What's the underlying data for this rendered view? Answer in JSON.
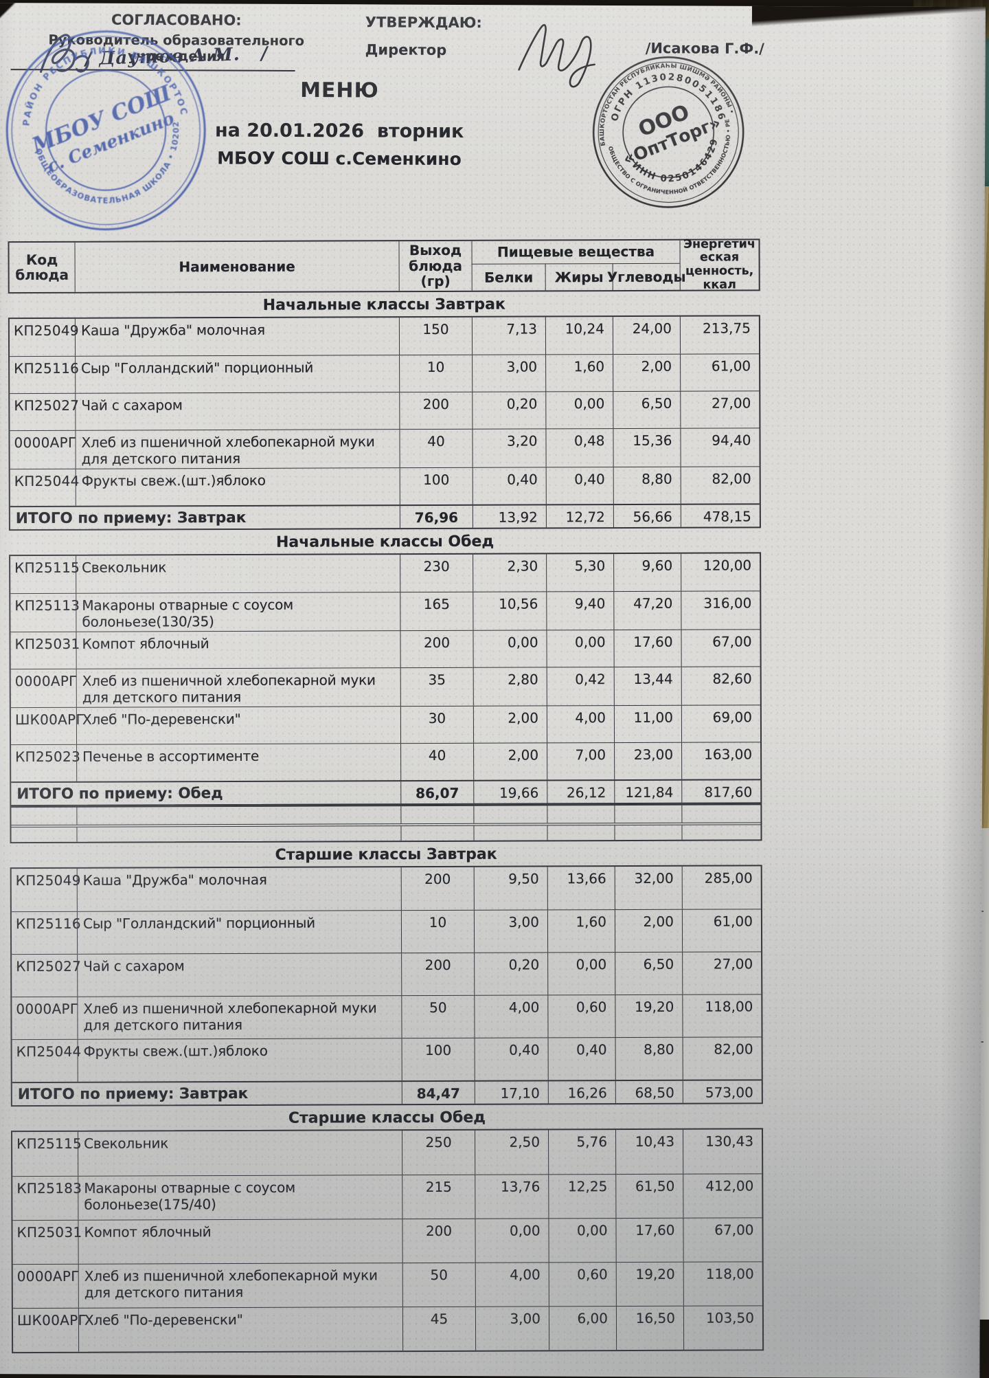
{
  "header": {
    "agreed": {
      "title": "СОГЛАСОВАНО:",
      "subtitle": "Руководитель образовательного учреждения",
      "signature_display": "/ Даутов А.М.   /"
    },
    "approved": {
      "title": "УТВЕРЖДАЮ:",
      "subtitle": "Директор",
      "name": "/Исакова Г.Ф./"
    }
  },
  "title": {
    "menu": "МЕНЮ",
    "date_line": "на 20.01.2026  вторник",
    "school_line": "МБОУ СОШ с.Семенкино"
  },
  "stamps": {
    "school": {
      "color": "#3d56a8",
      "center_line1": "МБОУ СОШ",
      "center_line2": "с. Семенкино",
      "rim_top": "РАЙОН РЕСПУБЛИКИ БАШКОРТОСТАН",
      "rim_bottom": "ОБЩЕОБРАЗОВАТЕЛЬНАЯ ШКОЛА • 1020201255953"
    },
    "vendor": {
      "color": "#26262b",
      "center_line1": "ООО",
      "center_line2": "«ОптТорг»",
      "rim_top_small": "БАШКОРТОСТАН РЕСПУБЛИКАҺЫ ШИШМӘ РАЙОНЫ • ЯУАПЛЫҒЫ СИКЛӘНГӘН ЙӘМҒИӘТ",
      "ogrn": "ОГРН 1130280051186",
      "inn": "ИНН 0250146429",
      "rim_bottom_small": "ОБЩЕСТВО С ОГРАНИЧЕННОЙ ОТВЕТСТВЕННОСТЬЮ • РЕСПУБЛИКА БАШКОРТОСТАН ЧИШМИНСКИЙ РАЙОН"
    }
  },
  "table": {
    "headers": {
      "code": "Код блюда",
      "name": "Наименование",
      "output": "Выход блюда (гр)",
      "nutrients_group": "Пищевые вещества",
      "protein": "Белки",
      "fat": "Жиры",
      "carbs": "Углеводы",
      "energy": "Энергетическая ценность, ккал"
    },
    "sections": [
      {
        "title": "Начальные классы Завтрак",
        "rows": [
          [
            "КП25049",
            "Каша \"Дружба\" молочная",
            "150",
            "7,13",
            "10,24",
            "24,00",
            "213,75"
          ],
          [
            "КП25116",
            "Сыр \"Голландский\" порционный",
            "10",
            "3,00",
            "1,60",
            "2,00",
            "61,00"
          ],
          [
            "КП25027",
            "Чай с сахаром",
            "200",
            "0,20",
            "0,00",
            "6,50",
            "27,00"
          ],
          [
            "0000АРГ",
            "Хлеб из пшеничной хлебопекарной муки для детского питания",
            "40",
            "3,20",
            "0,48",
            "15,36",
            "94,40"
          ],
          [
            "КП25044",
            "Фрукты свеж.(шт.)яблоко",
            "100",
            "0,40",
            "0,40",
            "8,80",
            "82,00"
          ]
        ],
        "total": [
          "ИТОГО по приему: Завтрак",
          "76,96",
          "13,92",
          "12,72",
          "56,66",
          "478,15"
        ],
        "spacer_rows": 0
      },
      {
        "title": "Начальные классы Обед",
        "rows": [
          [
            "КП25115",
            "Свекольник",
            "230",
            "2,30",
            "5,30",
            "9,60",
            "120,00"
          ],
          [
            "КП25113",
            "Макароны отварные с соусом болоньезе(130/35)",
            "165",
            "10,56",
            "9,40",
            "47,20",
            "316,00"
          ],
          [
            "КП25031",
            "Компот яблочный",
            "200",
            "0,00",
            "0,00",
            "17,60",
            "67,00"
          ],
          [
            "0000АРГ",
            "Хлеб из пшеничной хлебопекарной муки для детского питания",
            "35",
            "2,80",
            "0,42",
            "13,44",
            "82,60"
          ],
          [
            "ШК00АРГ",
            "Хлеб \"По-деревенски\"",
            "30",
            "2,00",
            "4,00",
            "11,00",
            "69,00"
          ],
          [
            "КП25023",
            "Печенье в ассортименте",
            "40",
            "2,00",
            "7,00",
            "23,00",
            "163,00"
          ]
        ],
        "total": [
          "ИТОГО по приему: Обед",
          "86,07",
          "19,66",
          "26,12",
          "121,84",
          "817,60"
        ],
        "spacer_rows": 2
      },
      {
        "title": "Старшие классы Завтрак",
        "rows": [
          [
            "КП25049",
            "Каша \"Дружба\" молочная",
            "200",
            "9,50",
            "13,66",
            "32,00",
            "285,00"
          ],
          [
            "КП25116",
            "Сыр \"Голландский\" порционный",
            "10",
            "3,00",
            "1,60",
            "2,00",
            "61,00"
          ],
          [
            "КП25027",
            "Чай с сахаром",
            "200",
            "0,20",
            "0,00",
            "6,50",
            "27,00"
          ],
          [
            "0000АРГ",
            "Хлеб из пшеничной хлебопекарной муки для детского питания",
            "50",
            "4,00",
            "0,60",
            "19,20",
            "118,00"
          ],
          [
            "КП25044",
            "Фрукты свеж.(шт.)яблоко",
            "100",
            "0,40",
            "0,40",
            "8,80",
            "82,00"
          ]
        ],
        "total": [
          "ИТОГО по приему: Завтрак",
          "84,47",
          "17,10",
          "16,26",
          "68,50",
          "573,00"
        ],
        "spacer_rows": 0
      },
      {
        "title": "Старшие классы Обед",
        "rows": [
          [
            "КП25115",
            "Свекольник",
            "250",
            "2,50",
            "5,76",
            "10,43",
            "130,43"
          ],
          [
            "КП25183",
            "Макароны отварные с соусом болоньезе(175/40)",
            "215",
            "13,76",
            "12,25",
            "61,50",
            "412,00"
          ],
          [
            "КП25031",
            "Компот яблочный",
            "200",
            "0,00",
            "0,00",
            "17,60",
            "67,00"
          ],
          [
            "0000АРГ",
            "Хлеб из пшеничной хлебопекарной муки для детского питания",
            "50",
            "4,00",
            "0,60",
            "19,20",
            "118,00"
          ],
          [
            "ШК00АРГ",
            "Хлеб \"По-деревенски\"",
            "45",
            "3,00",
            "6,00",
            "16,50",
            "103,50"
          ]
        ],
        "total": null,
        "spacer_rows": 0
      }
    ]
  },
  "edge_fragments": [
    ")",
    "5",
    "3",
    "0"
  ]
}
